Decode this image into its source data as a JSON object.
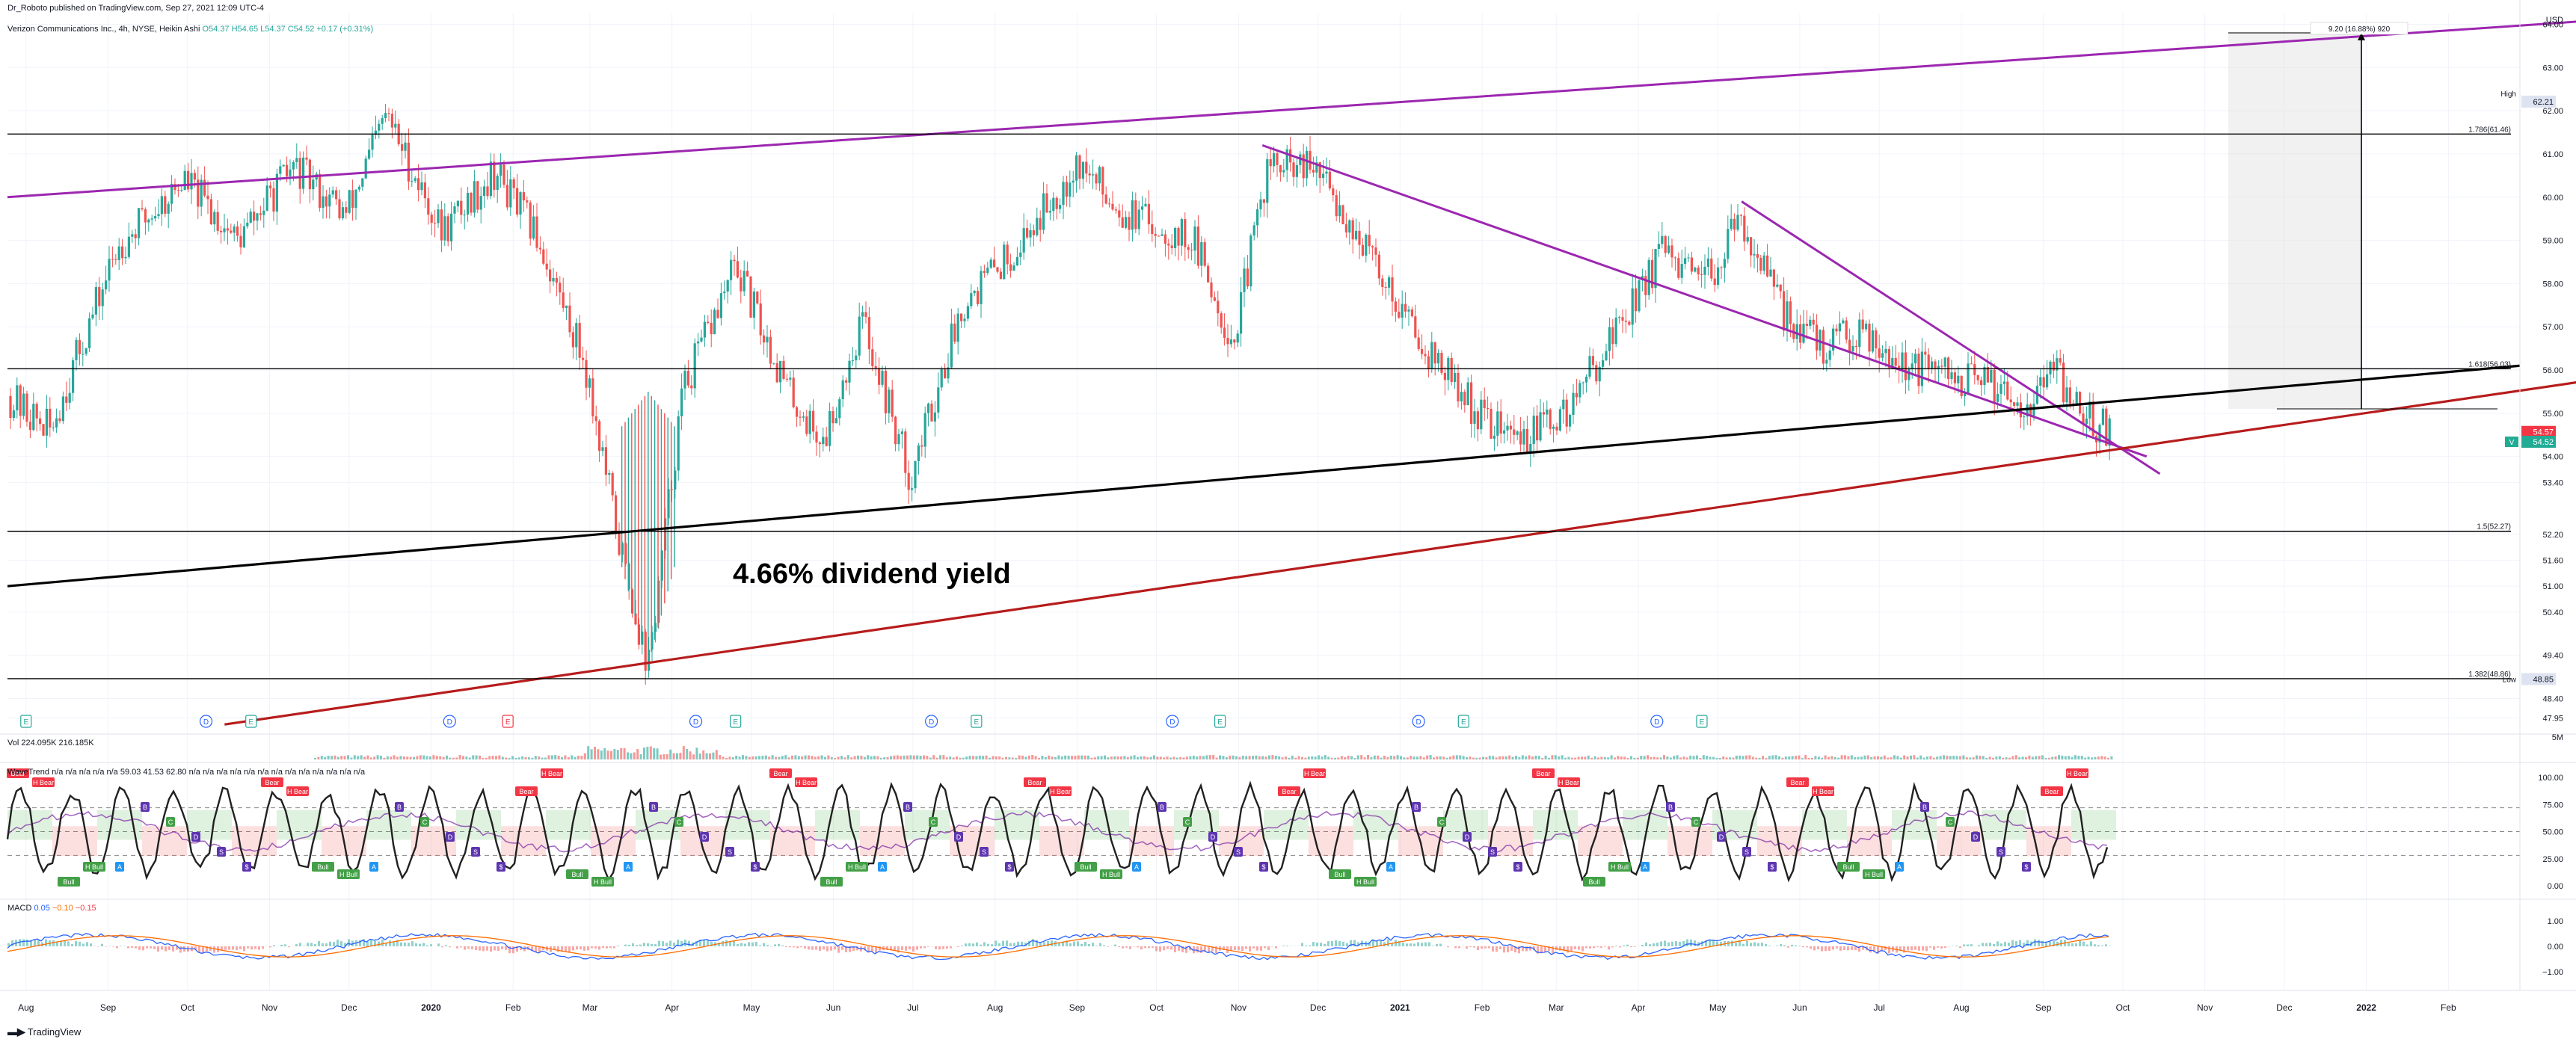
{
  "header": {
    "publisher": "Dr_Roboto published on TradingView.com, Sep 27, 2021 12:09 UTC-4",
    "symbol": "Verizon Communications Inc., 4h, NYSE, Heikin Ashi",
    "ohlc": "O54.37 H54.65 L54.37 C54.52 +0.17 (+0.31%)",
    "currency": "USD"
  },
  "annotation": {
    "text": "4.66% dividend yield"
  },
  "price_axis": {
    "labels": [
      "64.00",
      "63.00",
      "62.00",
      "61.00",
      "60.00",
      "59.00",
      "58.00",
      "57.00",
      "56.00",
      "55.00",
      "54.00",
      "53.40",
      "52.20",
      "51.60",
      "51.00",
      "50.40",
      "49.40",
      "48.40",
      "47.95"
    ],
    "high_label": "High",
    "high_value": "62.21",
    "low_label": "Low",
    "low_value": "48.85",
    "tag_red": "54.57",
    "tag_green": "54.52",
    "tag_letter": "V"
  },
  "fib_labels": [
    "1.786(61.46)",
    "1.618(56.03)",
    "1.5(52.27)",
    "1.382(48.86)"
  ],
  "measure_label": "9.20 (16.88%) 920",
  "time_axis": [
    "Aug",
    "Sep",
    "Oct",
    "Nov",
    "Dec",
    "2020",
    "Feb",
    "Mar",
    "Apr",
    "May",
    "Jun",
    "Jul",
    "Aug",
    "Sep",
    "Oct",
    "Nov",
    "Dec",
    "2021",
    "Feb",
    "Mar",
    "Apr",
    "May",
    "Jun",
    "Jul",
    "Aug",
    "Sep",
    "Oct",
    "Nov",
    "Dec",
    "2022",
    "Feb"
  ],
  "events": [
    "E",
    "D",
    "E",
    "D",
    "E",
    "D",
    "E",
    "D",
    "E",
    "D",
    "E",
    "D",
    "E",
    "D",
    "E"
  ],
  "volume": {
    "label": "Vol",
    "v1": "224.095K",
    "v2": "216.185K",
    "axis": "5M"
  },
  "wavetrend": {
    "label": "WaveTrend",
    "values": "n/a n/a n/a n/a n/a 59.03 41.53 62.80 n/a n/a n/a n/a n/a n/a n/a n/a n/a n/a n/a n/a n/a",
    "axis": [
      "100.00",
      "75.00",
      "50.00",
      "25.00",
      "0.00"
    ],
    "tag_labels": [
      "Bear",
      "H Bear",
      "Bull",
      "H Bull",
      "A",
      "B",
      "C",
      "D",
      "S",
      "$"
    ]
  },
  "macd": {
    "label": "MACD",
    "v1": "0.05",
    "v2": "−0.10",
    "v3": "−0.15",
    "axis": [
      "1.00",
      "0.00",
      "−1.00"
    ]
  },
  "footer": {
    "logo_text": "TradingView"
  },
  "colors": {
    "up": "#26a69a",
    "down": "#ef5350",
    "channel": "#9c27b0",
    "support": "#000000",
    "redline": "#b71c1c",
    "grid": "#f0f3fa"
  },
  "chart_data": {
    "type": "candlestick",
    "title": "Verizon Communications Inc., 4h, NYSE, Heikin Ashi",
    "xlabel": "",
    "ylabel": "",
    "ylim": [
      47.7,
      64.25
    ],
    "x_range": [
      "2019-07-25",
      "2022-02-28"
    ],
    "log_scale": false,
    "grid": true,
    "price_path": [
      {
        "t": "2019-07-25",
        "p": 55.4
      },
      {
        "t": "2019-08-10",
        "p": 54.6
      },
      {
        "t": "2019-09-05",
        "p": 58.9
      },
      {
        "t": "2019-09-30",
        "p": 60.4
      },
      {
        "t": "2019-10-20",
        "p": 59.0
      },
      {
        "t": "2019-11-10",
        "p": 60.7
      },
      {
        "t": "2019-11-30",
        "p": 59.6
      },
      {
        "t": "2019-12-15",
        "p": 61.9
      },
      {
        "t": "2020-01-05",
        "p": 59.2
      },
      {
        "t": "2020-01-25",
        "p": 60.6
      },
      {
        "t": "2020-02-10",
        "p": 59.1
      },
      {
        "t": "2020-02-28",
        "p": 56.2
      },
      {
        "t": "2020-03-12",
        "p": 52.0
      },
      {
        "t": "2020-03-23",
        "p": 49.1
      },
      {
        "t": "2020-04-05",
        "p": 55.5
      },
      {
        "t": "2020-04-25",
        "p": 58.4
      },
      {
        "t": "2020-05-15",
        "p": 55.5
      },
      {
        "t": "2020-05-28",
        "p": 54.3
      },
      {
        "t": "2020-06-12",
        "p": 57.2
      },
      {
        "t": "2020-06-30",
        "p": 53.5
      },
      {
        "t": "2020-07-20",
        "p": 57.6
      },
      {
        "t": "2020-08-10",
        "p": 58.9
      },
      {
        "t": "2020-09-01",
        "p": 60.8
      },
      {
        "t": "2020-09-20",
        "p": 59.6
      },
      {
        "t": "2020-10-15",
        "p": 59.0
      },
      {
        "t": "2020-10-30",
        "p": 56.6
      },
      {
        "t": "2020-11-12",
        "p": 60.7
      },
      {
        "t": "2020-12-01",
        "p": 60.6
      },
      {
        "t": "2020-12-20",
        "p": 58.7
      },
      {
        "t": "2021-01-10",
        "p": 56.6
      },
      {
        "t": "2021-01-30",
        "p": 55.0
      },
      {
        "t": "2021-02-15",
        "p": 54.4
      },
      {
        "t": "2021-03-05",
        "p": 55.0
      },
      {
        "t": "2021-03-20",
        "p": 56.6
      },
      {
        "t": "2021-04-10",
        "p": 58.7
      },
      {
        "t": "2021-04-25",
        "p": 57.9
      },
      {
        "t": "2021-05-10",
        "p": 59.5
      },
      {
        "t": "2021-05-25",
        "p": 57.4
      },
      {
        "t": "2021-06-10",
        "p": 56.5
      },
      {
        "t": "2021-06-25",
        "p": 57.0
      },
      {
        "t": "2021-07-10",
        "p": 56.1
      },
      {
        "t": "2021-07-30",
        "p": 55.8
      },
      {
        "t": "2021-08-15",
        "p": 55.7
      },
      {
        "t": "2021-08-25",
        "p": 55.2
      },
      {
        "t": "2021-09-05",
        "p": 56.0
      },
      {
        "t": "2021-09-15",
        "p": 55.0
      },
      {
        "t": "2021-09-27",
        "p": 54.52
      }
    ],
    "high": {
      "date": "2020-12-01",
      "value": 62.21
    },
    "low": {
      "date": "2020-03-23",
      "value": 48.85
    },
    "fib_levels": [
      {
        "ratio": "1.786",
        "value": 61.46
      },
      {
        "ratio": "1.618",
        "value": 56.03
      },
      {
        "ratio": "1.5",
        "value": 52.27
      },
      {
        "ratio": "1.382",
        "value": 48.86
      }
    ],
    "trendlines": [
      {
        "color": "purple",
        "from": {
          "t": "2019-07-25",
          "p": 60.0
        },
        "to": {
          "t": "2022-03-31",
          "p": 64.1
        }
      },
      {
        "color": "purple",
        "from": {
          "t": "2020-11-10",
          "p": 61.2
        },
        "to": {
          "t": "2021-10-10",
          "p": 54.0
        }
      },
      {
        "color": "purple",
        "from": {
          "t": "2021-05-10",
          "p": 59.9
        },
        "to": {
          "t": "2021-10-15",
          "p": 53.6
        }
      },
      {
        "color": "black",
        "from": {
          "t": "2019-07-25",
          "p": 51.0
        },
        "to": {
          "t": "2022-02-28",
          "p": 56.1
        }
      },
      {
        "color": "darkred",
        "from": {
          "t": "2019-10-15",
          "p": 47.8
        },
        "to": {
          "t": "2022-03-31",
          "p": 55.8
        }
      }
    ],
    "measure": {
      "from": 54.57,
      "to": 63.8,
      "text": "9.20 (16.88%) 920"
    },
    "last_close": 54.52
  }
}
